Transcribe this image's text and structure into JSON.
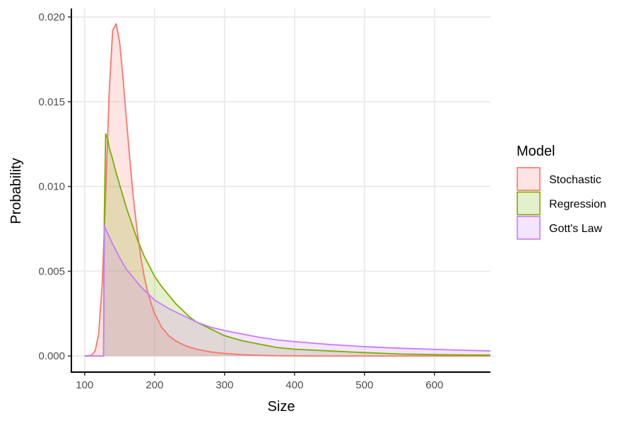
{
  "chart_data": {
    "type": "area",
    "title": "",
    "xlabel": "Size",
    "ylabel": "Probability",
    "xlim": [
      81,
      680
    ],
    "ylim": [
      -0.00095,
      0.0205
    ],
    "x_ticks": [
      100,
      200,
      300,
      400,
      500,
      600
    ],
    "x_tick_labels": [
      "100",
      "200",
      "300",
      "400",
      "500",
      "600"
    ],
    "y_ticks": [
      0.0,
      0.005,
      0.01,
      0.015,
      0.02
    ],
    "y_tick_labels": [
      "0.000",
      "0.005",
      "0.010",
      "0.015",
      "0.020"
    ],
    "grid": true,
    "legend": {
      "title": "Model",
      "placement": "right"
    },
    "series": [
      {
        "name": "Stochastic",
        "color": "#f8766d",
        "fill": "#f8766d",
        "x": [
          100,
          110,
          115,
          120,
          125,
          130,
          135,
          140,
          145,
          150,
          155,
          160,
          165,
          170,
          175,
          180,
          185,
          190,
          195,
          200,
          210,
          220,
          230,
          240,
          250,
          260,
          280,
          300,
          325,
          350,
          375,
          400,
          450,
          500,
          550,
          600,
          680
        ],
        "y": [
          0.0,
          5e-05,
          0.0003,
          0.0013,
          0.0042,
          0.0095,
          0.0155,
          0.0192,
          0.0196,
          0.0185,
          0.0163,
          0.0138,
          0.0114,
          0.0092,
          0.0074,
          0.0059,
          0.0047,
          0.0038,
          0.0031,
          0.0025,
          0.0017,
          0.0012,
          0.0009,
          0.00068,
          0.00052,
          0.0004,
          0.00024,
          0.00015,
          8e-05,
          4e-05,
          2e-05,
          1e-05,
          0.0,
          0.0,
          0.0,
          0.0,
          0.0
        ]
      },
      {
        "name": "Regression",
        "color": "#7cae00",
        "fill": "#7cae00",
        "x": [
          100,
          127,
          128,
          130,
          133,
          135,
          140,
          145,
          150,
          155,
          160,
          165,
          170,
          175,
          180,
          185,
          190,
          195,
          200,
          210,
          220,
          230,
          240,
          250,
          260,
          270,
          280,
          300,
          325,
          350,
          375,
          400,
          450,
          500,
          550,
          600,
          680
        ],
        "y": [
          0.0,
          0.0,
          0.008,
          0.0131,
          0.0128,
          0.0123,
          0.0116,
          0.0108,
          0.0101,
          0.0094,
          0.0087,
          0.0081,
          0.0075,
          0.0069,
          0.0064,
          0.0059,
          0.0055,
          0.0051,
          0.0047,
          0.0041,
          0.0036,
          0.0031,
          0.0027,
          0.0023,
          0.002,
          0.0018,
          0.0016,
          0.0012,
          0.0009,
          0.0007,
          0.0005,
          0.0004,
          0.0003,
          0.0002,
          0.00012,
          8e-05,
          5e-05
        ]
      },
      {
        "name": "Gott's Law",
        "color": "#c77cff",
        "fill": "#c77cff",
        "x": [
          100,
          127,
          128,
          130,
          140,
          150,
          160,
          170,
          180,
          190,
          200,
          220,
          240,
          260,
          280,
          300,
          325,
          350,
          375,
          400,
          450,
          500,
          550,
          600,
          650,
          680
        ],
        "y": [
          0.0,
          0.0,
          0.0077,
          0.0075,
          0.0066,
          0.0058,
          0.0051,
          0.0046,
          0.0041,
          0.0037,
          0.0033,
          0.0028,
          0.0024,
          0.002,
          0.0017,
          0.0015,
          0.0013,
          0.0011,
          0.00095,
          0.00085,
          0.00068,
          0.00055,
          0.00046,
          0.00039,
          0.00033,
          0.0003
        ]
      }
    ]
  }
}
